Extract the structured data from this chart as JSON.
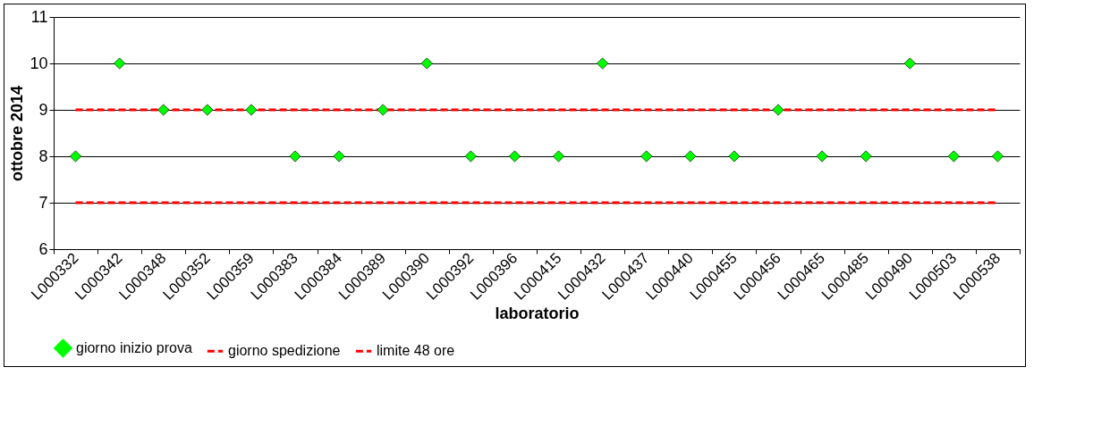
{
  "chart_data": {
    "type": "scatter",
    "xlabel": "laboratorio",
    "ylabel": "ottobre 2014",
    "categories": [
      "L000332",
      "L000342",
      "L000348",
      "L000352",
      "L000359",
      "L000383",
      "L000384",
      "L000389",
      "L000390",
      "L000392",
      "L000396",
      "L000415",
      "L000432",
      "L000437",
      "L000440",
      "L000455",
      "L000456",
      "L000465",
      "L000485",
      "L000490",
      "L000503",
      "L000538"
    ],
    "series": [
      {
        "name": "giorno inizio prova",
        "marker": "diamond",
        "color": "#00ff00",
        "values": [
          8,
          10,
          9,
          9,
          9,
          8,
          8,
          9,
          10,
          8,
          8,
          8,
          10,
          8,
          8,
          8,
          9,
          8,
          8,
          10,
          8,
          8
        ]
      },
      {
        "name": "giorno spedizione",
        "type": "line",
        "line_style": "dashed",
        "color": "#ff0000",
        "values": [
          9,
          9,
          9,
          9,
          9,
          9,
          9,
          9,
          9,
          9,
          9,
          9,
          9,
          9,
          9,
          9,
          9,
          9,
          9,
          9,
          9,
          9
        ]
      },
      {
        "name": "limite 48 ore",
        "type": "line",
        "line_style": "dashed",
        "color": "#ff0000",
        "values": [
          7,
          7,
          7,
          7,
          7,
          7,
          7,
          7,
          7,
          7,
          7,
          7,
          7,
          7,
          7,
          7,
          7,
          7,
          7,
          7,
          7,
          7
        ]
      }
    ],
    "ylim": [
      6,
      11
    ],
    "yticks": [
      6,
      7,
      8,
      9,
      10,
      11
    ],
    "grid": "y",
    "legend": "bottom"
  }
}
